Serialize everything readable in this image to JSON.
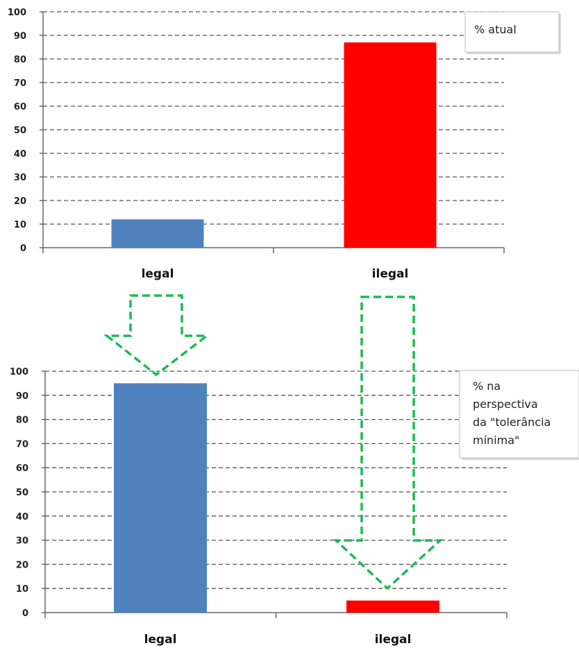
{
  "chart_data": [
    {
      "type": "bar",
      "categories": [
        "legal",
        "ilegal"
      ],
      "ytick_labels": [
        "0",
        "10",
        "20",
        "30",
        "40",
        "50",
        "60",
        "70",
        "80",
        "90",
        "100"
      ],
      "ylim": [
        0,
        100
      ],
      "values": [
        12,
        87
      ],
      "colors": [
        "#4f81bd",
        "#ff0000"
      ],
      "legend_text": [
        "% atual"
      ],
      "legend_placement": "top-right",
      "grid": true
    },
    {
      "type": "bar",
      "categories": [
        "legal",
        "ilegal"
      ],
      "ytick_labels": [
        "0",
        "10",
        "20",
        "30",
        "40",
        "50",
        "60",
        "70",
        "80",
        "90",
        "100"
      ],
      "ylim": [
        0,
        100
      ],
      "values": [
        95,
        5
      ],
      "colors": [
        "#4f81bd",
        "#ff0000"
      ],
      "legend_text": [
        "% na",
        "perspectiva",
        "da \"tolerância",
        "mínima\""
      ],
      "legend_placement": "top-right",
      "grid": true
    }
  ],
  "annotations": {
    "arrow_color": "#1db954",
    "arrows": [
      {
        "meaning": "legal share rises",
        "from_chart": 0,
        "category": "legal",
        "direction": "down"
      },
      {
        "meaning": "ilegal share falls",
        "from_chart": 0,
        "category": "ilegal",
        "direction": "down"
      }
    ]
  }
}
